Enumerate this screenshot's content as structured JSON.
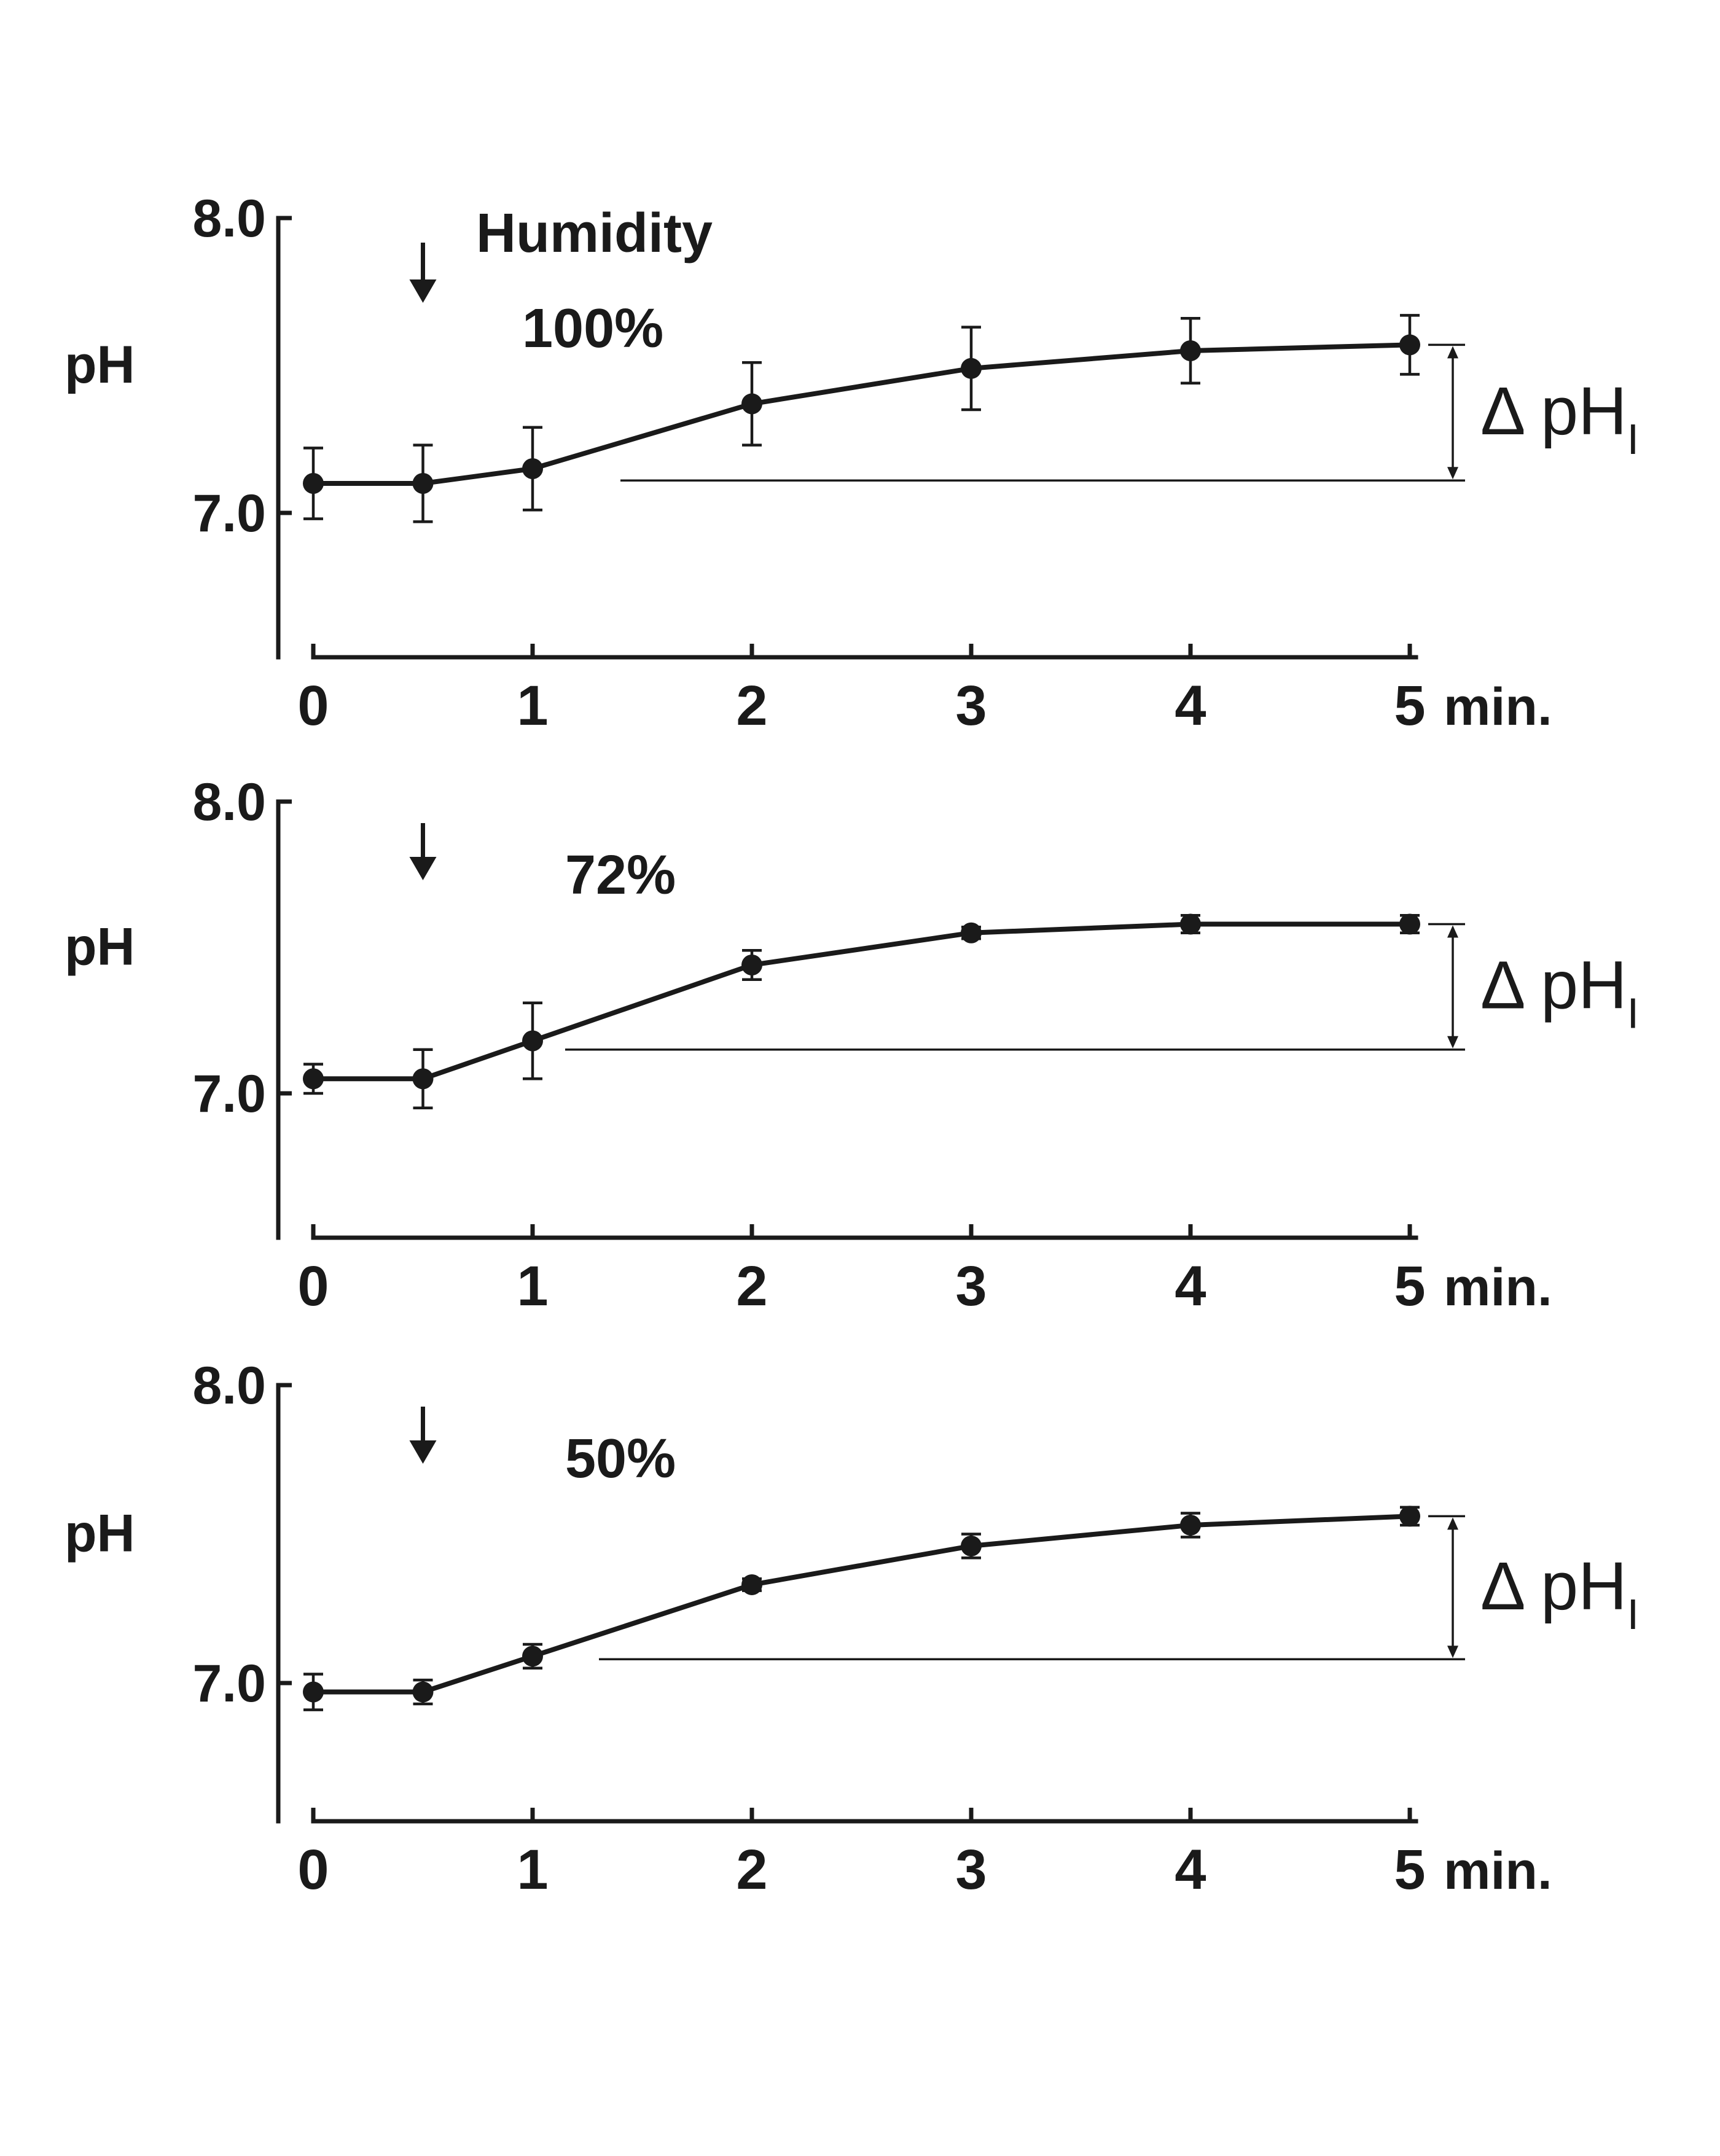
{
  "chart_data": [
    {
      "type": "line",
      "panel": "top",
      "ylabel": "pH",
      "y_ticks": [
        "8.0",
        "7.0"
      ],
      "x_ticks": [
        "0",
        "1",
        "2",
        "3",
        "4",
        "5"
      ],
      "x_unit": "min.",
      "title": "Humidity",
      "condition": "100%",
      "arrow_at_min": 0.5,
      "delta_label": "Δ pH",
      "delta_subscript": "I",
      "delta_range": [
        7.11,
        7.57
      ],
      "ylim": [
        6.5,
        8.0
      ],
      "xlim": [
        0,
        5
      ],
      "x": [
        0,
        0.5,
        1,
        2,
        3,
        4,
        5
      ],
      "y": [
        7.1,
        7.1,
        7.15,
        7.37,
        7.49,
        7.55,
        7.57
      ],
      "error": [
        0.12,
        0.13,
        0.14,
        0.14,
        0.14,
        0.11,
        0.1
      ]
    },
    {
      "type": "line",
      "panel": "middle",
      "ylabel": "pH",
      "y_ticks": [
        "8.0",
        "7.0"
      ],
      "x_ticks": [
        "0",
        "1",
        "2",
        "3",
        "4",
        "5"
      ],
      "x_unit": "min.",
      "title": "",
      "condition": "72%",
      "arrow_at_min": 0.5,
      "delta_label": "Δ pH",
      "delta_subscript": "I",
      "delta_range": [
        7.15,
        7.58
      ],
      "ylim": [
        6.5,
        8.0
      ],
      "xlim": [
        0,
        5
      ],
      "x": [
        0,
        0.5,
        1,
        2,
        3,
        4,
        5
      ],
      "y": [
        7.05,
        7.05,
        7.18,
        7.44,
        7.55,
        7.58,
        7.58
      ],
      "error": [
        0.05,
        0.1,
        0.13,
        0.05,
        0.02,
        0.03,
        0.03
      ]
    },
    {
      "type": "line",
      "panel": "bottom",
      "ylabel": "pH",
      "y_ticks": [
        "8.0",
        "7.0"
      ],
      "x_ticks": [
        "0",
        "1",
        "2",
        "3",
        "4",
        "5"
      ],
      "x_unit": "min.",
      "title": "",
      "condition": "50%",
      "arrow_at_min": 0.5,
      "delta_label": "Δ pH",
      "delta_subscript": "I",
      "delta_range": [
        7.08,
        7.56
      ],
      "ylim": [
        6.5,
        8.0
      ],
      "xlim": [
        0,
        5
      ],
      "x": [
        0,
        0.5,
        1,
        2,
        3,
        4,
        5
      ],
      "y": [
        6.97,
        6.97,
        7.09,
        7.33,
        7.46,
        7.53,
        7.56
      ],
      "error": [
        0.06,
        0.04,
        0.04,
        0.02,
        0.04,
        0.04,
        0.03
      ]
    }
  ]
}
